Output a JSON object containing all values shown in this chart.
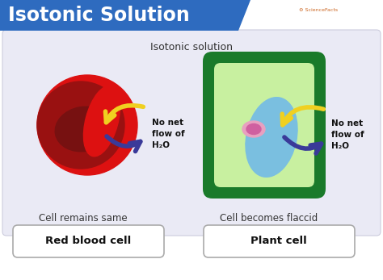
{
  "title": "Isotonic Solution",
  "title_bg": "#2e6bbf",
  "title_color": "#ffffff",
  "main_bg": "#ffffff",
  "panel_bg": "#eaeaf5",
  "subtitle": "Isotonic solution",
  "label_left": "Cell remains same",
  "label_right": "Cell becomes flaccid",
  "btn_left": "Red blood cell",
  "btn_right": "Plant cell",
  "arrow_label": "No net\nflow of\nH₂O",
  "rbc_outer_color": "#dd1111",
  "rbc_shadow_color": "#991111",
  "rbc_dark_color": "#771111",
  "plant_wall_color": "#1a7a2a",
  "plant_fill_color": "#c8f0a0",
  "vacuole_color": "#7abfe0",
  "nucleus_outer": "#e8a0c0",
  "nucleus_inner": "#d060a0",
  "arrow_yellow": "#f0d020",
  "arrow_yellow_edge": "#c8a800",
  "arrow_purple": "#3a3a99",
  "btn_bg": "#ffffff",
  "btn_border": "#aaaaaa",
  "sciencefacts_color": "#cc6622"
}
